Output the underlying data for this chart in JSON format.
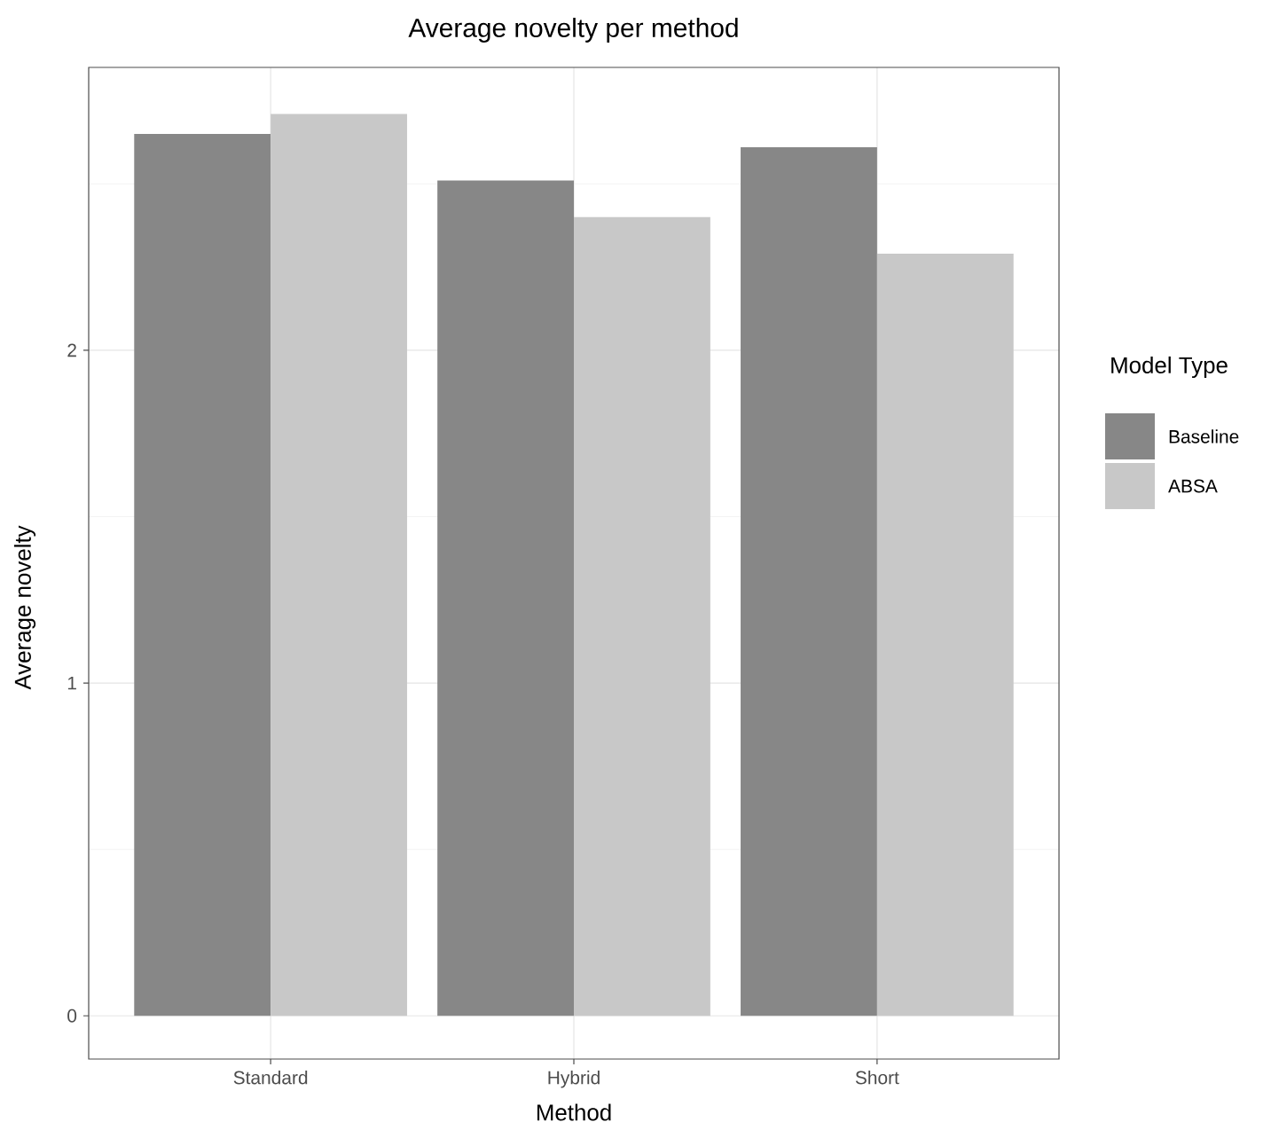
{
  "chart_data": {
    "type": "bar",
    "title": "Average novelty per method",
    "xlabel": "Method",
    "ylabel": "Average novelty",
    "legend_title": "Model Type",
    "categories": [
      "Standard",
      "Hybrid",
      "Short"
    ],
    "series": [
      {
        "name": "Baseline",
        "color": "#878787",
        "values": [
          2.65,
          2.51,
          2.61
        ]
      },
      {
        "name": "ABSA",
        "color": "#c8c8c8",
        "values": [
          2.71,
          2.4,
          2.29
        ]
      }
    ],
    "ylim": [
      -0.13,
      2.85
    ],
    "yticks": [
      0,
      {
        "value": 0.5,
        "label": null
      },
      1,
      {
        "value": 1.5,
        "label": null
      },
      2,
      {
        "value": 2.5,
        "label": null
      }
    ],
    "grid": true,
    "legend": "right"
  }
}
